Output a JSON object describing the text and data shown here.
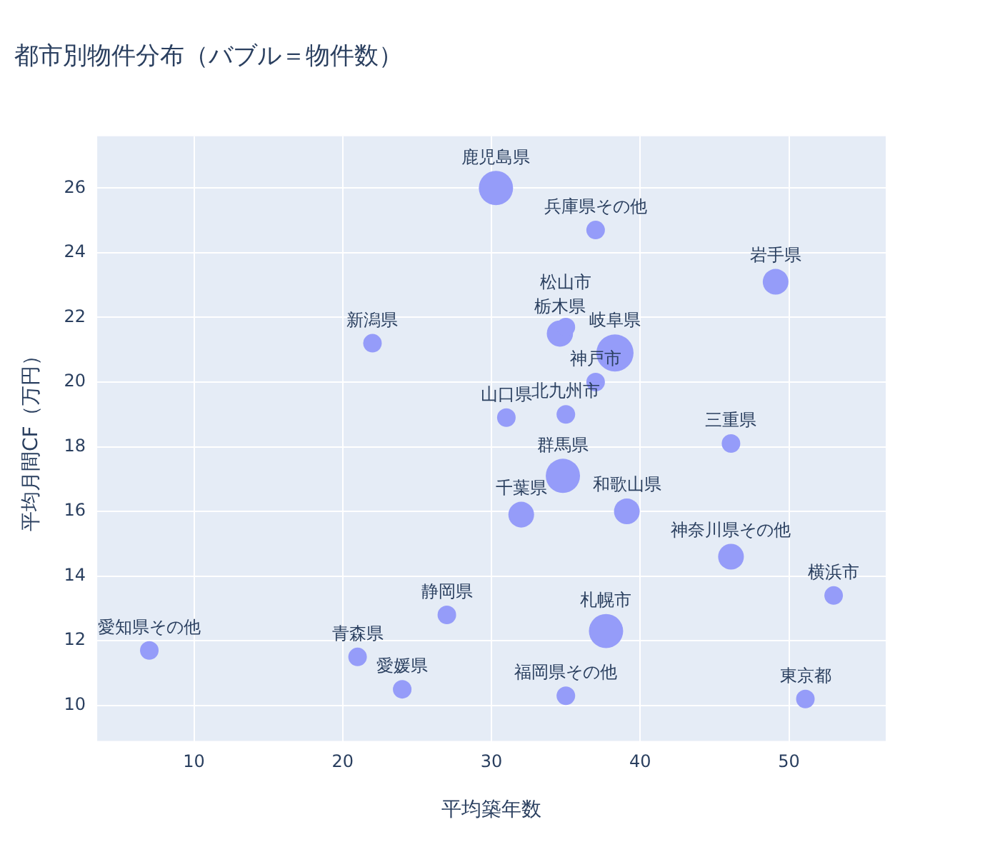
{
  "chart_data": {
    "type": "bubble",
    "title": "都市別物件分布（バブル＝物件数）",
    "xlabel": "平均築年数",
    "ylabel": "平均月間CF（万円）",
    "x": [
      30.3,
      37.0,
      49.1,
      22.0,
      34.6,
      35.0,
      38.3,
      37.0,
      31.0,
      35.0,
      46.1,
      34.8,
      32.0,
      39.1,
      46.1,
      53.0,
      27.0,
      37.7,
      7.0,
      21.0,
      24.0,
      35.0,
      51.1
    ],
    "values": [
      26.0,
      24.7,
      23.1,
      21.2,
      21.5,
      21.7,
      20.9,
      20.0,
      18.9,
      19.0,
      18.1,
      17.1,
      15.9,
      16.0,
      14.6,
      13.4,
      12.8,
      12.3,
      11.7,
      11.5,
      10.5,
      10.3,
      10.2
    ],
    "sizes": [
      0.85,
      0.25,
      0.48,
      0.25,
      0.5,
      0.25,
      1,
      0.25,
      0.25,
      0.25,
      0.25,
      0.85,
      0.48,
      0.48,
      0.48,
      0.25,
      0.25,
      0.85,
      0.25,
      0.25,
      0.25,
      0.25,
      0.25
    ],
    "color": "#959cf9",
    "annotations": [
      {
        "text": "鹿児島県",
        "x": 30.3,
        "y": 26.0
      },
      {
        "text": "兵庫県その他",
        "x": 37.0,
        "y": 24.7
      },
      {
        "text": "岩手県",
        "x": 49.1,
        "y": 23.1
      },
      {
        "text": "新潟県",
        "x": 22.0,
        "y": 21.2
      },
      {
        "text": "栃木県",
        "x": 34.6,
        "y": 21.5
      },
      {
        "text": "松山市",
        "x": 35.0,
        "y": 21.7
      },
      {
        "text": "岐阜県",
        "x": 38.3,
        "y": 20.9
      },
      {
        "text": "神戸市",
        "x": 37.0,
        "y": 20.0
      },
      {
        "text": "山口県",
        "x": 31.0,
        "y": 18.9
      },
      {
        "text": "北九州市",
        "x": 35.0,
        "y": 19.0
      },
      {
        "text": "三重県",
        "x": 46.1,
        "y": 18.1
      },
      {
        "text": "群馬県",
        "x": 34.8,
        "y": 17.1
      },
      {
        "text": "千葉県",
        "x": 32.0,
        "y": 15.9
      },
      {
        "text": "和歌山県",
        "x": 39.1,
        "y": 16.0
      },
      {
        "text": "神奈川県その他",
        "x": 46.1,
        "y": 14.6
      },
      {
        "text": "横浜市",
        "x": 53.0,
        "y": 13.4
      },
      {
        "text": "静岡県",
        "x": 27.0,
        "y": 12.8
      },
      {
        "text": "札幌市",
        "x": 37.7,
        "y": 12.3
      },
      {
        "text": "愛知県その他",
        "x": 7.0,
        "y": 11.7
      },
      {
        "text": "青森県",
        "x": 21.0,
        "y": 11.5
      },
      {
        "text": "愛媛県",
        "x": 24.0,
        "y": 10.5
      },
      {
        "text": "福岡県その他",
        "x": 35.0,
        "y": 10.3
      },
      {
        "text": "東京都",
        "x": 51.1,
        "y": 10.2
      }
    ],
    "xlim": [
      3.5,
      56.5
    ],
    "ylim": [
      8.9,
      27.6
    ],
    "xticks": [
      10,
      20,
      30,
      40,
      50
    ],
    "yticks": [
      10,
      12,
      14,
      16,
      18,
      20,
      22,
      24,
      26
    ],
    "grid": true,
    "legend": false
  }
}
